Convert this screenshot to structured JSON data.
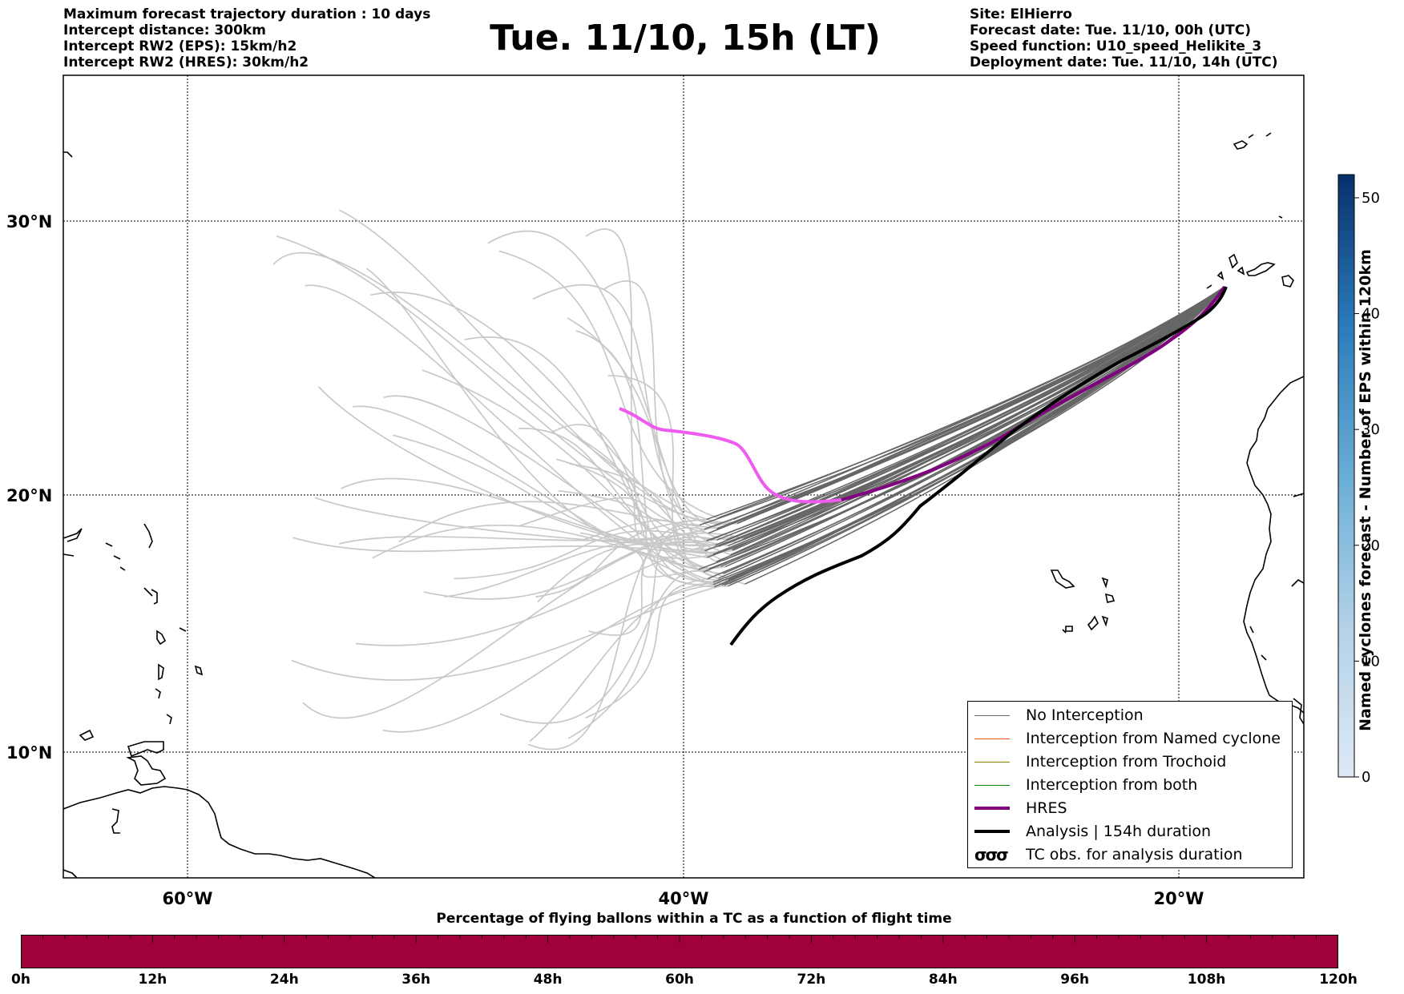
{
  "header_left": [
    "Maximum forecast trajectory duration : 10 days",
    "Intercept distance: 300km",
    "Intercept RW2 (EPS):  15km/h2",
    "Intercept RW2 (HRES): 30km/h2"
  ],
  "title": "Tue. 11/10, 15h (LT)",
  "header_right": [
    "Site: ElHierro",
    "Forecast date: Tue. 11/10, 00h (UTC)",
    "Speed function: U10_speed_Helikite_3",
    "Deployment date: Tue. 11/10, 14h (UTC)"
  ],
  "map": {
    "lat_labels": [
      "30°N",
      "20°N",
      "10°N"
    ],
    "lon_labels": [
      "60°W",
      "40°W",
      "20°W"
    ],
    "lon_range_deg": [
      -65,
      -15
    ],
    "lat_range_deg": [
      5.3,
      34.6
    ]
  },
  "legend": {
    "items": [
      {
        "label": "No Interception",
        "color": "#666666",
        "style": "thin"
      },
      {
        "label": "Interception from Named cyclone",
        "color": "#e8501a",
        "style": "thin"
      },
      {
        "label": "Interception from Trochoid",
        "color": "#808000",
        "style": "thin"
      },
      {
        "label": "Interception from both",
        "color": "#008000",
        "style": "thin"
      },
      {
        "label": "HRES",
        "color": "#800080",
        "style": "thick"
      },
      {
        "label": "Analysis | 154h duration",
        "color": "#000000",
        "style": "thick"
      },
      {
        "label": "TC obs. for analysis duration",
        "color": "#000000",
        "style": "symbol",
        "icon": "cyclone-symbol-icon"
      }
    ]
  },
  "colorbar": {
    "title": "Named cyclones forecast - Number of EPS within 120km",
    "ticks": [
      "0",
      "10",
      "20",
      "30",
      "40",
      "50"
    ],
    "range": [
      0,
      52
    ],
    "colors": [
      "#dbe9f6",
      "#08306b"
    ]
  },
  "percentage_bar": {
    "title": "Percentage of flying ballons within a TC as a function of flight time",
    "ticks": [
      "0h",
      "12h",
      "24h",
      "36h",
      "48h",
      "60h",
      "72h",
      "84h",
      "96h",
      "108h",
      "120h"
    ],
    "color": "#a0003c"
  }
}
